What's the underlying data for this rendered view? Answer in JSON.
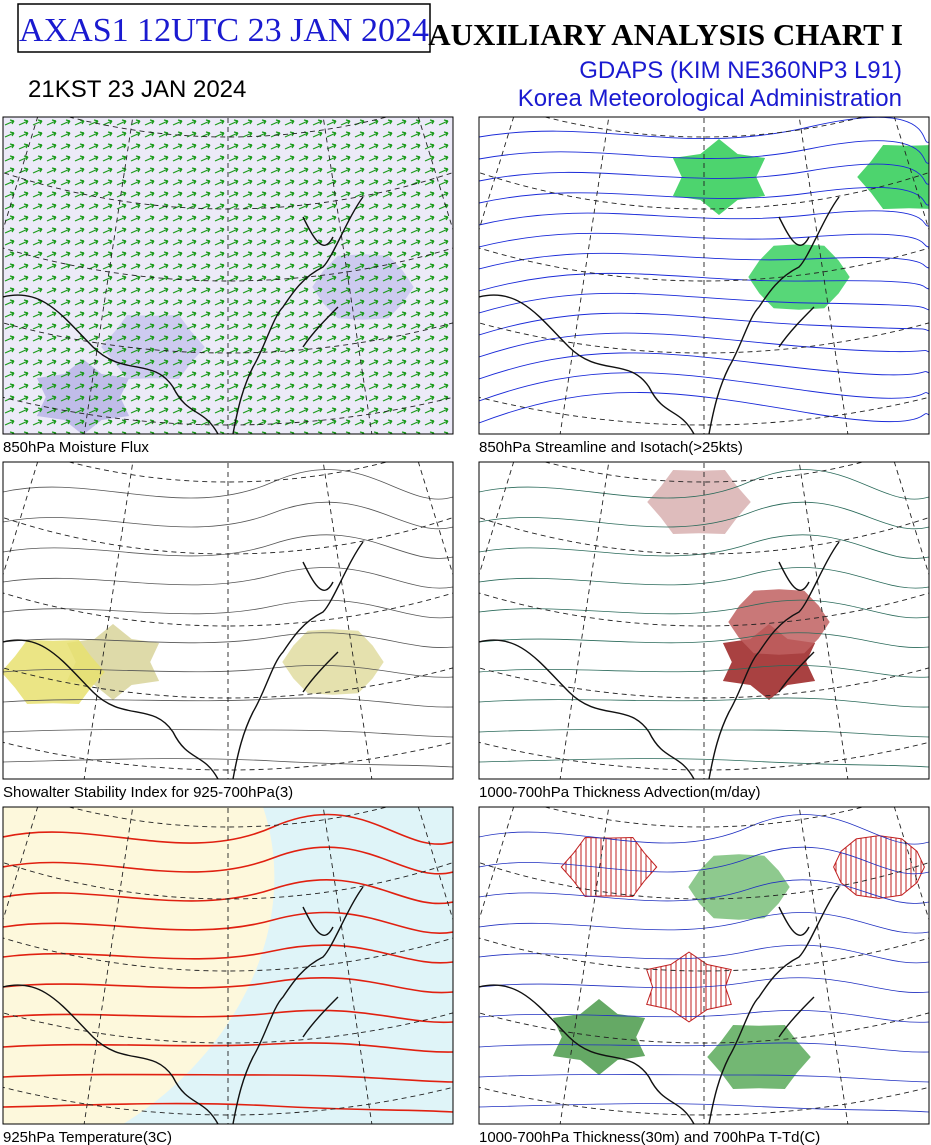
{
  "header": {
    "code": "AXAS1  12UTC 23 JAN 2024",
    "local_time": "21KST 23 JAN 2024",
    "title": "AUXILIARY ANALYSIS CHART  I",
    "model": "GDAPS (KIM NE360NP3 L91)",
    "agency": "Korea Meteorological Administration"
  },
  "panels": [
    {
      "caption": "850hPa Moisture Flux"
    },
    {
      "caption": "850hPa Streamline and Isotach(>25kts)"
    },
    {
      "caption": "Showalter Stability Index for 925-700hPa(3)"
    },
    {
      "caption": "1000-700hPa Thickness Advection(m/day)"
    },
    {
      "caption": "925hPa Temperature(3C)"
    },
    {
      "caption": "1000-700hPa Thickness(30m) and 700hPa T-Td(C)"
    }
  ]
}
